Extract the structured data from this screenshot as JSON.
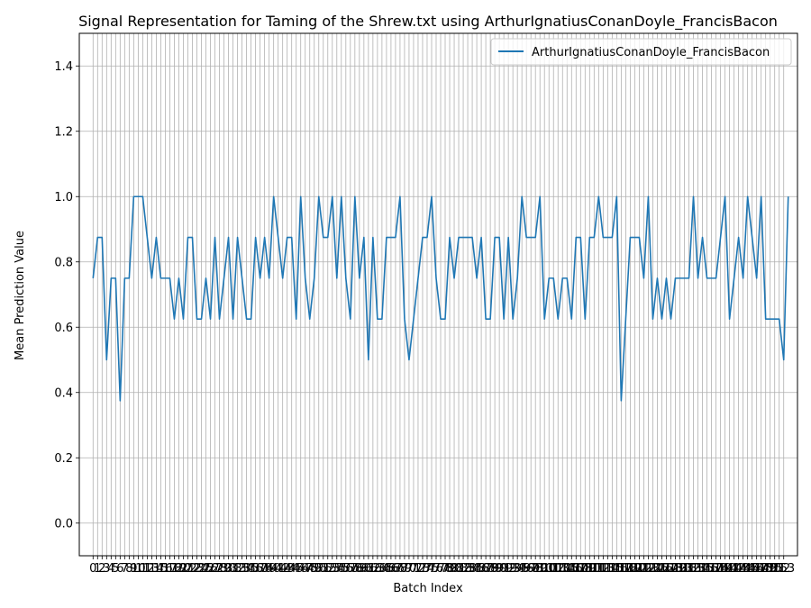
{
  "chart_data": {
    "type": "line",
    "title": "Signal Representation for Taming of the Shrew.txt using ArthurIgnatiusConanDoyle_FrancisBacon",
    "xlabel": "Batch Index",
    "ylabel": "Mean Prediction Value",
    "xlim": [
      -3.05,
      156.05
    ],
    "ylim": [
      -0.1,
      1.5
    ],
    "y_ticks": [
      "0.0",
      "0.2",
      "0.4",
      "0.6",
      "0.8",
      "1.0",
      "1.2",
      "1.4"
    ],
    "y_tick_values": [
      0,
      0.2,
      0.4,
      0.6,
      0.8,
      1.0,
      1.2,
      1.4
    ],
    "x_range": [
      0,
      153
    ],
    "grid": true,
    "legend_position": "upper right",
    "colors": {
      "line": "#1f77b4",
      "grid": "#b0b0b0"
    },
    "series": [
      {
        "name": "ArthurIgnatiusConanDoyle_FrancisBacon",
        "values": [
          0.75,
          0.875,
          0.875,
          0.5,
          0.75,
          0.75,
          0.375,
          0.75,
          0.75,
          1.0,
          1.0,
          1.0,
          0.875,
          0.75,
          0.875,
          0.75,
          0.75,
          0.75,
          0.625,
          0.75,
          0.625,
          0.875,
          0.875,
          0.625,
          0.625,
          0.75,
          0.625,
          0.875,
          0.625,
          0.75,
          0.875,
          0.625,
          0.875,
          0.75,
          0.625,
          0.625,
          0.875,
          0.75,
          0.875,
          0.75,
          1.0,
          0.875,
          0.75,
          0.875,
          0.875,
          0.625,
          1.0,
          0.75,
          0.625,
          0.75,
          1.0,
          0.875,
          0.875,
          1.0,
          0.75,
          1.0,
          0.75,
          0.625,
          1.0,
          0.75,
          0.875,
          0.5,
          0.875,
          0.625,
          0.625,
          0.875,
          0.875,
          0.875,
          1.0,
          0.625,
          0.5,
          0.625,
          0.75,
          0.875,
          0.875,
          1.0,
          0.75,
          0.625,
          0.625,
          0.875,
          0.75,
          0.875,
          0.875,
          0.875,
          0.875,
          0.75,
          0.875,
          0.625,
          0.625,
          0.875,
          0.875,
          0.625,
          0.875,
          0.625,
          0.75,
          1.0,
          0.875,
          0.875,
          0.875,
          1.0,
          0.625,
          0.75,
          0.75,
          0.625,
          0.75,
          0.75,
          0.625,
          0.875,
          0.875,
          0.625,
          0.875,
          0.875,
          1.0,
          0.875,
          0.875,
          0.875,
          1.0,
          0.375,
          0.625,
          0.875,
          0.875,
          0.875,
          0.75,
          1.0,
          0.625,
          0.75,
          0.625,
          0.75,
          0.625,
          0.75,
          0.75,
          0.75,
          0.75,
          1.0,
          0.75,
          0.875,
          0.75,
          0.75,
          0.75,
          0.875,
          1.0,
          0.625,
          0.75,
          0.875,
          0.75,
          1.0,
          0.875,
          0.75,
          1.0,
          0.625,
          0.625,
          0.625,
          0.625,
          0.5,
          1.0
        ]
      }
    ]
  }
}
